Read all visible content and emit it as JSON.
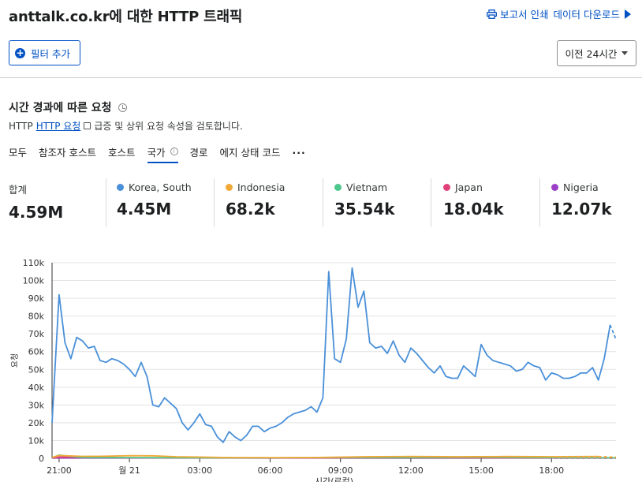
{
  "header": {
    "title": "anttalk.co.kr에 대한 HTTP 트래픽",
    "print_label": "보고서 인쇄",
    "download_label": "데이터 다운로드"
  },
  "toolbar": {
    "add_filter_label": "필터 추가",
    "time_range": "이전 24시간"
  },
  "section": {
    "title": "시간 경과에 따른 요청",
    "desc_prefix": "HTTP",
    "desc_link": "HTTP 요청",
    "desc_suffix": "급증 및 상위 요청 속성을 검토합니다."
  },
  "tabs": [
    {
      "label": "모두"
    },
    {
      "label": "참조자 호스트"
    },
    {
      "label": "호스트"
    },
    {
      "label": "국가",
      "active": true
    },
    {
      "label": "경로"
    },
    {
      "label": "에지 상태 코드"
    },
    {
      "label": "..."
    }
  ],
  "stats": [
    {
      "label": "합계",
      "value": "4.59M",
      "color": ""
    },
    {
      "label": "Korea, South",
      "value": "4.45M",
      "color": "#4a90d9"
    },
    {
      "label": "Indonesia",
      "value": "68.2k",
      "color": "#f0a936"
    },
    {
      "label": "Vietnam",
      "value": "35.54k",
      "color": "#4dc78c"
    },
    {
      "label": "Japan",
      "value": "18.04k",
      "color": "#e0417a"
    },
    {
      "label": "Nigeria",
      "value": "12.07k",
      "color": "#9b3fc7"
    }
  ],
  "chart_data": {
    "type": "line",
    "ylabel": "요청",
    "xlabel": "시간(로컬)",
    "y_ticks": [
      "0",
      "10k",
      "20k",
      "30k",
      "40k",
      "50k",
      "60k",
      "70k",
      "80k",
      "90k",
      "100k",
      "110k"
    ],
    "ylim": [
      0,
      110000
    ],
    "x_ticks": [
      "21:00",
      "월 21",
      "03:00",
      "06:00",
      "09:00",
      "12:00",
      "15:00",
      "18:00"
    ],
    "x_tick_hours": [
      21,
      24,
      27,
      30,
      33,
      36,
      39,
      42
    ],
    "grid": true,
    "series": [
      {
        "name": "Korea, South",
        "color": "#4a90d9",
        "x": [
          20.7,
          21.0,
          21.25,
          21.5,
          21.75,
          22.0,
          22.25,
          22.5,
          22.75,
          23.0,
          23.25,
          23.5,
          23.75,
          24.0,
          24.25,
          24.5,
          24.75,
          25.0,
          25.25,
          25.5,
          25.75,
          26.0,
          26.25,
          26.5,
          26.75,
          27.0,
          27.25,
          27.5,
          27.75,
          28.0,
          28.25,
          28.5,
          28.75,
          29.0,
          29.25,
          29.5,
          29.75,
          30.0,
          30.25,
          30.5,
          30.75,
          31.0,
          31.25,
          31.5,
          31.75,
          32.0,
          32.25,
          32.5,
          32.75,
          33.0,
          33.25,
          33.5,
          33.75,
          34.0,
          34.25,
          34.5,
          34.75,
          35.0,
          35.25,
          35.5,
          35.75,
          36.0,
          36.25,
          36.5,
          36.75,
          37.0,
          37.25,
          37.5,
          37.75,
          38.0,
          38.25,
          38.5,
          38.75,
          39.0,
          39.25,
          39.5,
          39.75,
          40.0,
          40.25,
          40.5,
          40.75,
          41.0,
          41.25,
          41.5,
          41.75,
          42.0,
          42.25,
          42.5,
          42.75,
          43.0,
          43.25,
          43.5,
          43.75,
          44.0,
          44.25,
          44.5,
          44.75
        ],
        "y": [
          20000,
          92000,
          65000,
          56000,
          68000,
          66000,
          62000,
          63000,
          55000,
          54000,
          56000,
          55000,
          53000,
          50000,
          46000,
          54000,
          46000,
          30000,
          29000,
          34000,
          31000,
          28000,
          20000,
          16000,
          20000,
          25000,
          19000,
          18000,
          12000,
          9000,
          15000,
          12000,
          10000,
          13000,
          18000,
          18000,
          15000,
          17000,
          18000,
          20000,
          23000,
          25000,
          26000,
          27000,
          29000,
          26000,
          34000,
          105000,
          56000,
          54000,
          67000,
          107000,
          85000,
          94000,
          65000,
          62000,
          63000,
          59000,
          66000,
          58000,
          54000,
          62000,
          59000,
          55000,
          51000,
          48000,
          52000,
          46000,
          45000,
          45000,
          52000,
          49000,
          46000,
          64000,
          58000,
          55000,
          54000,
          53000,
          52000,
          49000,
          50000,
          54000,
          52000,
          51000,
          44000,
          48000,
          47000,
          45000,
          45000,
          46000,
          48000,
          48000,
          51000,
          44000,
          56000,
          75000,
          67000
        ]
      },
      {
        "name": "Indonesia",
        "color": "#f0a936",
        "x": [
          20.7,
          21.0,
          22.0,
          23.0,
          24.0,
          25.0,
          26.0,
          27.0,
          28.0,
          30.0,
          32.0,
          34.0,
          36.0,
          38.0,
          40.0,
          42.0,
          44.0,
          44.75
        ],
        "y": [
          500,
          1600,
          1100,
          1200,
          1500,
          1400,
          900,
          700,
          500,
          400,
          500,
          900,
          1000,
          900,
          1000,
          900,
          1000,
          600
        ]
      },
      {
        "name": "Vietnam",
        "color": "#4dc78c",
        "x": [
          20.7,
          21.0,
          22.0,
          24.0,
          27.0,
          30.0,
          33.0,
          36.0,
          39.0,
          42.0,
          44.75
        ],
        "y": [
          300,
          1800,
          500,
          400,
          300,
          300,
          500,
          500,
          600,
          400,
          300
        ]
      },
      {
        "name": "Japan",
        "color": "#e0417a",
        "x": [
          20.7,
          21.0,
          24.0,
          27.0,
          30.0,
          33.0,
          36.0,
          39.0,
          42.0,
          44.75
        ],
        "y": [
          200,
          700,
          300,
          200,
          200,
          300,
          400,
          300,
          300,
          200
        ]
      },
      {
        "name": "Nigeria",
        "color": "#9b3fc7",
        "x": [
          20.7,
          21.0,
          24.0,
          27.0,
          30.0,
          33.0,
          36.0,
          39.0,
          42.0,
          44.75
        ],
        "y": [
          100,
          300,
          200,
          200,
          150,
          300,
          300,
          250,
          200,
          150
        ]
      }
    ]
  }
}
